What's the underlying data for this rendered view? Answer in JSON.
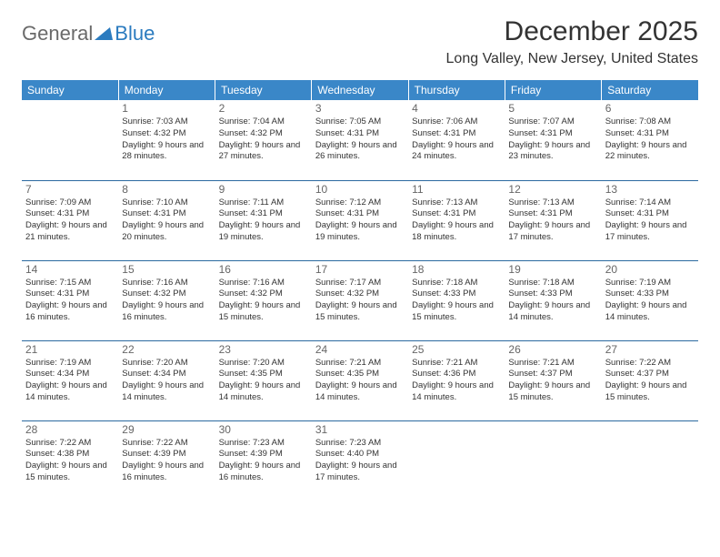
{
  "logo": {
    "part1": "General",
    "part2": "Blue"
  },
  "title": "December 2025",
  "location": "Long Valley, New Jersey, United States",
  "colors": {
    "header_bg": "#3a87c8",
    "header_text": "#ffffff",
    "row_border": "#2b6aa0",
    "daynum": "#666666",
    "body_text": "#333333",
    "logo_gray": "#6a6a6a",
    "logo_blue": "#2b7bbf",
    "bg": "#ffffff"
  },
  "typography": {
    "title_fontsize": 30,
    "location_fontsize": 16,
    "header_fontsize": 12,
    "daynum_fontsize": 12,
    "cell_fontsize": 9.5
  },
  "weekdays": [
    "Sunday",
    "Monday",
    "Tuesday",
    "Wednesday",
    "Thursday",
    "Friday",
    "Saturday"
  ],
  "weeks": [
    [
      null,
      {
        "n": "1",
        "sr": "7:03 AM",
        "ss": "4:32 PM",
        "dl": "9 hours and 28 minutes."
      },
      {
        "n": "2",
        "sr": "7:04 AM",
        "ss": "4:32 PM",
        "dl": "9 hours and 27 minutes."
      },
      {
        "n": "3",
        "sr": "7:05 AM",
        "ss": "4:31 PM",
        "dl": "9 hours and 26 minutes."
      },
      {
        "n": "4",
        "sr": "7:06 AM",
        "ss": "4:31 PM",
        "dl": "9 hours and 24 minutes."
      },
      {
        "n": "5",
        "sr": "7:07 AM",
        "ss": "4:31 PM",
        "dl": "9 hours and 23 minutes."
      },
      {
        "n": "6",
        "sr": "7:08 AM",
        "ss": "4:31 PM",
        "dl": "9 hours and 22 minutes."
      }
    ],
    [
      {
        "n": "7",
        "sr": "7:09 AM",
        "ss": "4:31 PM",
        "dl": "9 hours and 21 minutes."
      },
      {
        "n": "8",
        "sr": "7:10 AM",
        "ss": "4:31 PM",
        "dl": "9 hours and 20 minutes."
      },
      {
        "n": "9",
        "sr": "7:11 AM",
        "ss": "4:31 PM",
        "dl": "9 hours and 19 minutes."
      },
      {
        "n": "10",
        "sr": "7:12 AM",
        "ss": "4:31 PM",
        "dl": "9 hours and 19 minutes."
      },
      {
        "n": "11",
        "sr": "7:13 AM",
        "ss": "4:31 PM",
        "dl": "9 hours and 18 minutes."
      },
      {
        "n": "12",
        "sr": "7:13 AM",
        "ss": "4:31 PM",
        "dl": "9 hours and 17 minutes."
      },
      {
        "n": "13",
        "sr": "7:14 AM",
        "ss": "4:31 PM",
        "dl": "9 hours and 17 minutes."
      }
    ],
    [
      {
        "n": "14",
        "sr": "7:15 AM",
        "ss": "4:31 PM",
        "dl": "9 hours and 16 minutes."
      },
      {
        "n": "15",
        "sr": "7:16 AM",
        "ss": "4:32 PM",
        "dl": "9 hours and 16 minutes."
      },
      {
        "n": "16",
        "sr": "7:16 AM",
        "ss": "4:32 PM",
        "dl": "9 hours and 15 minutes."
      },
      {
        "n": "17",
        "sr": "7:17 AM",
        "ss": "4:32 PM",
        "dl": "9 hours and 15 minutes."
      },
      {
        "n": "18",
        "sr": "7:18 AM",
        "ss": "4:33 PM",
        "dl": "9 hours and 15 minutes."
      },
      {
        "n": "19",
        "sr": "7:18 AM",
        "ss": "4:33 PM",
        "dl": "9 hours and 14 minutes."
      },
      {
        "n": "20",
        "sr": "7:19 AM",
        "ss": "4:33 PM",
        "dl": "9 hours and 14 minutes."
      }
    ],
    [
      {
        "n": "21",
        "sr": "7:19 AM",
        "ss": "4:34 PM",
        "dl": "9 hours and 14 minutes."
      },
      {
        "n": "22",
        "sr": "7:20 AM",
        "ss": "4:34 PM",
        "dl": "9 hours and 14 minutes."
      },
      {
        "n": "23",
        "sr": "7:20 AM",
        "ss": "4:35 PM",
        "dl": "9 hours and 14 minutes."
      },
      {
        "n": "24",
        "sr": "7:21 AM",
        "ss": "4:35 PM",
        "dl": "9 hours and 14 minutes."
      },
      {
        "n": "25",
        "sr": "7:21 AM",
        "ss": "4:36 PM",
        "dl": "9 hours and 14 minutes."
      },
      {
        "n": "26",
        "sr": "7:21 AM",
        "ss": "4:37 PM",
        "dl": "9 hours and 15 minutes."
      },
      {
        "n": "27",
        "sr": "7:22 AM",
        "ss": "4:37 PM",
        "dl": "9 hours and 15 minutes."
      }
    ],
    [
      {
        "n": "28",
        "sr": "7:22 AM",
        "ss": "4:38 PM",
        "dl": "9 hours and 15 minutes."
      },
      {
        "n": "29",
        "sr": "7:22 AM",
        "ss": "4:39 PM",
        "dl": "9 hours and 16 minutes."
      },
      {
        "n": "30",
        "sr": "7:23 AM",
        "ss": "4:39 PM",
        "dl": "9 hours and 16 minutes."
      },
      {
        "n": "31",
        "sr": "7:23 AM",
        "ss": "4:40 PM",
        "dl": "9 hours and 17 minutes."
      },
      null,
      null,
      null
    ]
  ],
  "labels": {
    "sunrise": "Sunrise:",
    "sunset": "Sunset:",
    "daylight": "Daylight:"
  }
}
